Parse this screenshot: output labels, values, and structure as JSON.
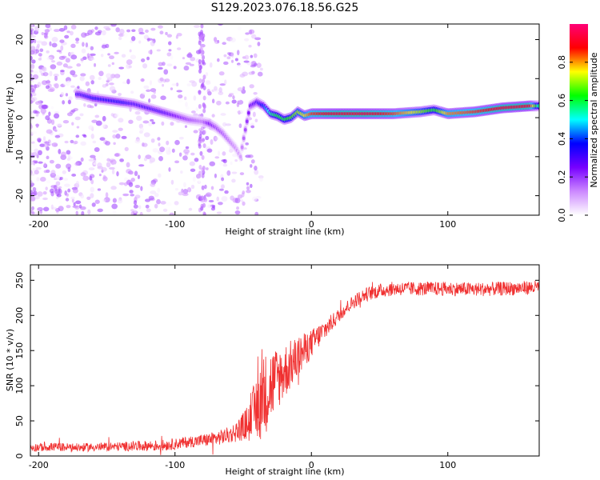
{
  "title": "S129.2023.076.18.56.G25",
  "colors": {
    "snr_line": "#f03030",
    "axis": "#000000"
  },
  "chart_data": [
    {
      "type": "heatmap",
      "xlabel": "Height of straight line (km)",
      "ylabel": "Frequency (Hz)",
      "xlim": [
        -206,
        167
      ],
      "ylim": [
        -25,
        24
      ],
      "x_ticks": [
        -200,
        -100,
        0,
        100
      ],
      "y_ticks": [
        -20,
        -10,
        0,
        10,
        20
      ],
      "colorbar": {
        "label": "Normalized spectral amplitude",
        "range": [
          0,
          1
        ],
        "ticks": [
          0.0,
          0.2,
          0.4,
          0.6,
          0.8
        ],
        "colormap": [
          "#ffffff",
          "#cc88ff",
          "#7700ff",
          "#0000ff",
          "#00ffff",
          "#00ff00",
          "#ffff00",
          "#ff0000",
          "#ff0077"
        ]
      },
      "ridge": {
        "x": [
          -170,
          -160,
          -150,
          -140,
          -130,
          -120,
          -110,
          -100,
          -90,
          -80,
          -75,
          -70,
          -65,
          -60,
          -55,
          -52,
          -50,
          -45,
          -40,
          -35,
          -30,
          -25,
          -20,
          -15,
          -10,
          -5,
          0,
          20,
          40,
          60,
          80,
          90,
          100,
          120,
          140,
          160,
          167
        ],
        "y": [
          6,
          5,
          4.5,
          4,
          3.5,
          2.5,
          1.5,
          0.5,
          -0.5,
          -1,
          -1.5,
          -2.5,
          -4,
          -6,
          -8,
          -10,
          -6,
          3,
          4,
          3,
          1,
          0.5,
          -0.5,
          0,
          1.5,
          0.5,
          1,
          1,
          1,
          1,
          1.5,
          2,
          1,
          1.5,
          2.5,
          3,
          3
        ],
        "amp": [
          0.3,
          0.35,
          0.35,
          0.35,
          0.3,
          0.3,
          0.3,
          0.25,
          0.2,
          0.15,
          0.25,
          0.2,
          0.18,
          0.15,
          0.12,
          0.1,
          0.15,
          0.25,
          0.3,
          0.4,
          0.55,
          0.6,
          0.6,
          0.65,
          0.7,
          0.75,
          0.85,
          0.9,
          0.9,
          0.85,
          0.7,
          0.6,
          0.8,
          0.85,
          0.9,
          0.9,
          0.5
        ]
      }
    },
    {
      "type": "line",
      "xlabel": "Height of straight line (km)",
      "ylabel": "SNR (10 * v/v)",
      "xlim": [
        -206,
        167
      ],
      "ylim": [
        0,
        272
      ],
      "x_ticks": [
        -200,
        -100,
        0,
        100
      ],
      "y_ticks": [
        0,
        50,
        100,
        150,
        200,
        250
      ],
      "series": [
        {
          "x": [
            -206,
            -190,
            -170,
            -150,
            -130,
            -110,
            -100,
            -90,
            -80,
            -70,
            -60,
            -55,
            -50,
            -45,
            -40,
            -35,
            -30,
            -25,
            -20,
            -15,
            -10,
            -5,
            0,
            5,
            10,
            15,
            20,
            25,
            30,
            35,
            40,
            50,
            60,
            80,
            100,
            120,
            140,
            167
          ],
          "y": [
            12,
            13,
            12,
            13,
            14,
            15,
            17,
            20,
            22,
            25,
            30,
            35,
            42,
            50,
            70,
            85,
            100,
            110,
            120,
            130,
            140,
            150,
            160,
            170,
            180,
            190,
            200,
            210,
            218,
            225,
            230,
            235,
            238,
            238,
            238,
            237,
            238,
            240
          ],
          "noise": [
            6,
            6,
            6,
            6,
            7,
            8,
            8,
            8,
            9,
            10,
            12,
            15,
            20,
            30,
            50,
            60,
            55,
            45,
            40,
            35,
            30,
            25,
            20,
            18,
            15,
            12,
            10,
            10,
            10,
            10,
            10,
            10,
            10,
            10,
            10,
            10,
            10,
            10
          ]
        }
      ]
    }
  ]
}
